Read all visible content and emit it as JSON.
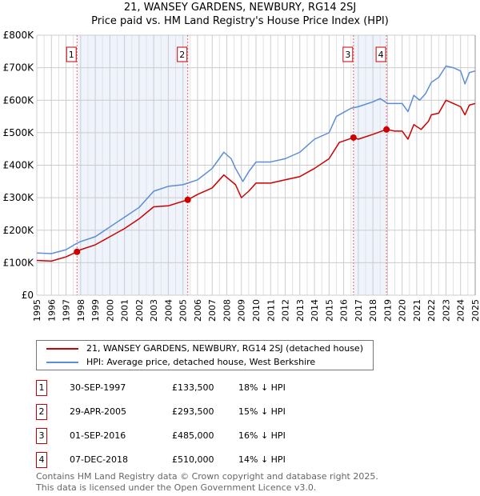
{
  "title": "21, WANSEY GARDENS, NEWBURY, RG14 2SJ",
  "subtitle": "Price paid vs. HM Land Registry's House Price Index (HPI)",
  "chart_data": {
    "type": "line",
    "title": "21, WANSEY GARDENS, NEWBURY, RG14 2SJ",
    "subtitle": "Price paid vs. HM Land Registry's House Price Index (HPI)",
    "xlim": [
      1995,
      2025
    ],
    "ylim": [
      0,
      800000
    ],
    "x_ticks": [
      "1995",
      "1996",
      "1997",
      "1998",
      "1999",
      "2000",
      "2001",
      "2002",
      "2003",
      "2004",
      "2005",
      "2006",
      "2007",
      "2008",
      "2009",
      "2010",
      "2011",
      "2012",
      "2013",
      "2014",
      "2015",
      "2016",
      "2017",
      "2018",
      "2019",
      "2020",
      "2021",
      "2022",
      "2023",
      "2024",
      "2025"
    ],
    "y_ticks": [
      {
        "v": 0,
        "label": "£0"
      },
      {
        "v": 100000,
        "label": "£100K"
      },
      {
        "v": 200000,
        "label": "£200K"
      },
      {
        "v": 300000,
        "label": "£300K"
      },
      {
        "v": 400000,
        "label": "£400K"
      },
      {
        "v": 500000,
        "label": "£500K"
      },
      {
        "v": 600000,
        "label": "£600K"
      },
      {
        "v": 700000,
        "label": "£700K"
      },
      {
        "v": 800000,
        "label": "£800K"
      }
    ],
    "grid": true,
    "series": [
      {
        "name": "21, WANSEY GARDENS, NEWBURY, RG14 2SJ (detached house)",
        "color": "#cc0000",
        "points": [
          [
            1995,
            107000
          ],
          [
            1996,
            105000
          ],
          [
            1997,
            118000
          ],
          [
            1997.75,
            133500
          ],
          [
            1998,
            140000
          ],
          [
            1999,
            155000
          ],
          [
            2000,
            180000
          ],
          [
            2001,
            205000
          ],
          [
            2002,
            235000
          ],
          [
            2003,
            272000
          ],
          [
            2004,
            275000
          ],
          [
            2005.33,
            293500
          ],
          [
            2006,
            310000
          ],
          [
            2007,
            330000
          ],
          [
            2007.8,
            370000
          ],
          [
            2008.6,
            340000
          ],
          [
            2009,
            300000
          ],
          [
            2009.5,
            320000
          ],
          [
            2010,
            345000
          ],
          [
            2011,
            345000
          ],
          [
            2012,
            355000
          ],
          [
            2013,
            365000
          ],
          [
            2014,
            390000
          ],
          [
            2015,
            420000
          ],
          [
            2015.7,
            470000
          ],
          [
            2016.67,
            485000
          ],
          [
            2017,
            480000
          ],
          [
            2018,
            495000
          ],
          [
            2018.93,
            510000
          ],
          [
            2019.5,
            505000
          ],
          [
            2020,
            505000
          ],
          [
            2020.4,
            480000
          ],
          [
            2020.8,
            525000
          ],
          [
            2021.3,
            510000
          ],
          [
            2021.8,
            535000
          ],
          [
            2022,
            555000
          ],
          [
            2022.5,
            560000
          ],
          [
            2023,
            600000
          ],
          [
            2023.5,
            590000
          ],
          [
            2024,
            580000
          ],
          [
            2024.3,
            555000
          ],
          [
            2024.6,
            585000
          ],
          [
            2025,
            590000
          ]
        ]
      },
      {
        "name": "HPI: Average price, detached house, West Berkshire",
        "color": "#5b8ed6",
        "points": [
          [
            1995,
            130000
          ],
          [
            1996,
            128000
          ],
          [
            1997,
            140000
          ],
          [
            1997.75,
            160000
          ],
          [
            1998,
            165000
          ],
          [
            1999,
            180000
          ],
          [
            2000,
            210000
          ],
          [
            2001,
            240000
          ],
          [
            2002,
            270000
          ],
          [
            2003,
            320000
          ],
          [
            2004,
            335000
          ],
          [
            2005,
            340000
          ],
          [
            2006,
            355000
          ],
          [
            2007,
            390000
          ],
          [
            2007.8,
            440000
          ],
          [
            2008.3,
            420000
          ],
          [
            2008.6,
            390000
          ],
          [
            2009.1,
            350000
          ],
          [
            2009.5,
            380000
          ],
          [
            2010,
            410000
          ],
          [
            2011,
            410000
          ],
          [
            2012,
            420000
          ],
          [
            2013,
            440000
          ],
          [
            2014,
            480000
          ],
          [
            2015,
            500000
          ],
          [
            2015.5,
            550000
          ],
          [
            2016.5,
            575000
          ],
          [
            2017,
            580000
          ],
          [
            2018,
            595000
          ],
          [
            2018.5,
            605000
          ],
          [
            2019,
            590000
          ],
          [
            2020,
            590000
          ],
          [
            2020.4,
            565000
          ],
          [
            2020.8,
            615000
          ],
          [
            2021.2,
            600000
          ],
          [
            2021.6,
            620000
          ],
          [
            2022,
            655000
          ],
          [
            2022.5,
            670000
          ],
          [
            2023,
            705000
          ],
          [
            2023.5,
            700000
          ],
          [
            2024,
            690000
          ],
          [
            2024.3,
            650000
          ],
          [
            2024.6,
            685000
          ],
          [
            2025,
            690000
          ]
        ]
      }
    ],
    "shaded_ranges": [
      [
        1997.75,
        2005.33
      ],
      [
        2016.67,
        2018.93
      ]
    ],
    "markers": [
      {
        "label": "1",
        "x": 1997.75,
        "y": 133500
      },
      {
        "label": "2",
        "x": 2005.33,
        "y": 293500
      },
      {
        "label": "3",
        "x": 2016.67,
        "y": 485000
      },
      {
        "label": "4",
        "x": 2018.93,
        "y": 510000
      }
    ],
    "legend_position": "bottom"
  },
  "legend": [
    {
      "label": "21, WANSEY GARDENS, NEWBURY, RG14 2SJ (detached house)",
      "color": "#cc0000"
    },
    {
      "label": "HPI: Average price, detached house, West Berkshire",
      "color": "#5b8ed6"
    }
  ],
  "transactions": [
    {
      "num": "1",
      "date": "30-SEP-1997",
      "price": "£133,500",
      "hpi": "18% ↓ HPI"
    },
    {
      "num": "2",
      "date": "29-APR-2005",
      "price": "£293,500",
      "hpi": "15% ↓ HPI"
    },
    {
      "num": "3",
      "date": "01-SEP-2016",
      "price": "£485,000",
      "hpi": "16% ↓ HPI"
    },
    {
      "num": "4",
      "date": "07-DEC-2018",
      "price": "£510,000",
      "hpi": "14% ↓ HPI"
    }
  ],
  "footer": {
    "line1": "Contains HM Land Registry data © Crown copyright and database right 2025.",
    "line2": "This data is licensed under the Open Government Licence v3.0."
  }
}
